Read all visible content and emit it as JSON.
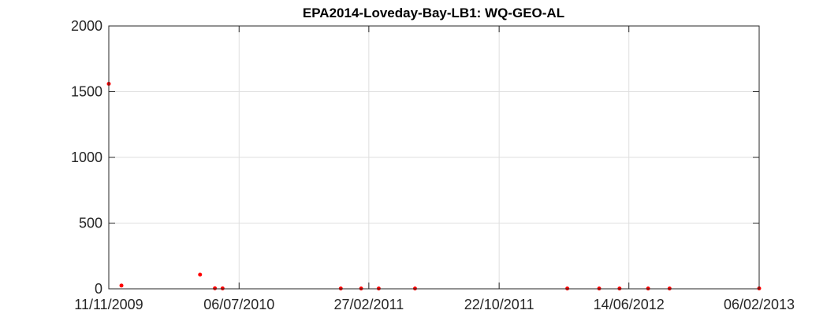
{
  "chart_data": {
    "type": "scatter",
    "title": "EPA2014-Loveday-Bay-LB1: WQ-GEO-AL",
    "xlabel": "",
    "ylabel": "",
    "x_axis_type": "date",
    "xlim": [
      "2009-11-11",
      "2013-02-06"
    ],
    "ylim": [
      0,
      2000
    ],
    "x_ticks": [
      "11/11/2009",
      "06/07/2010",
      "27/02/2011",
      "22/10/2011",
      "14/06/2012",
      "06/02/2013"
    ],
    "x_tick_dates": [
      "2009-11-11",
      "2010-07-06",
      "2011-02-27",
      "2011-10-22",
      "2012-06-14",
      "2013-02-06"
    ],
    "y_ticks": [
      0,
      500,
      1000,
      1500,
      2000
    ],
    "grid": true,
    "marker_color": "#ff0000",
    "series": [
      {
        "name": "",
        "x": [
          "2009-11-11",
          "2009-12-04",
          "2010-04-26",
          "2010-05-23",
          "2010-06-06",
          "2011-01-07",
          "2011-02-13",
          "2011-03-17",
          "2011-05-22",
          "2012-02-23",
          "2012-04-21",
          "2012-05-28",
          "2012-07-19",
          "2012-08-27",
          "2013-02-06"
        ],
        "y": [
          1560,
          25,
          108,
          4,
          3,
          2,
          2,
          2,
          2,
          2,
          2,
          2,
          2,
          2,
          3
        ]
      }
    ]
  }
}
